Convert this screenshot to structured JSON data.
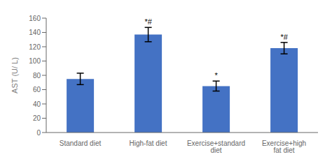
{
  "chart_data": {
    "type": "bar",
    "categories": [
      "Standard diet",
      "High-fat diet",
      "Exercise+standard diet",
      "Exercise+high fat diet"
    ],
    "values": [
      75,
      137,
      65,
      118
    ],
    "errors": [
      8,
      10,
      7,
      8
    ],
    "annotations": [
      null,
      "*#",
      "*",
      "*#"
    ],
    "color": "#4472C4",
    "ylabel": "AST (U/ L)",
    "ylim": [
      0,
      160
    ],
    "yticks": [
      0,
      20,
      40,
      60,
      80,
      100,
      120,
      140,
      160
    ],
    "grid": false
  }
}
